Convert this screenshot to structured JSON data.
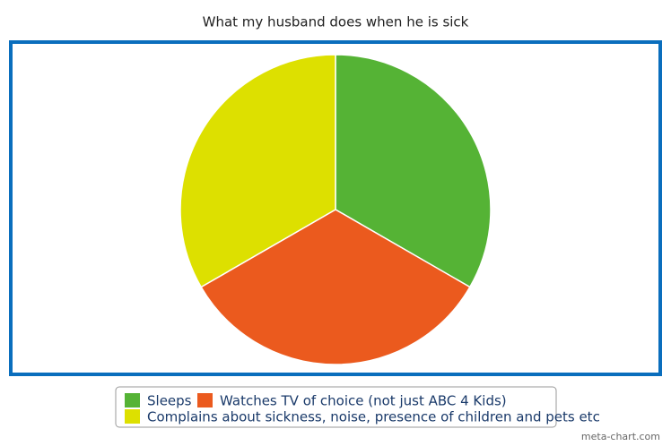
{
  "chart_data": {
    "type": "pie",
    "title": "What my husband does when he is sick",
    "categories": [
      "Sleeps",
      "Watches TV of choice (not just ABC 4 Kids)",
      "Complains about sickness, noise, presence of children and pets etc"
    ],
    "values": [
      33.3,
      33.3,
      33.3
    ],
    "colors": [
      "#55b335",
      "#eb5a1e",
      "#dde000"
    ],
    "watermark": "meta-chart.com"
  }
}
